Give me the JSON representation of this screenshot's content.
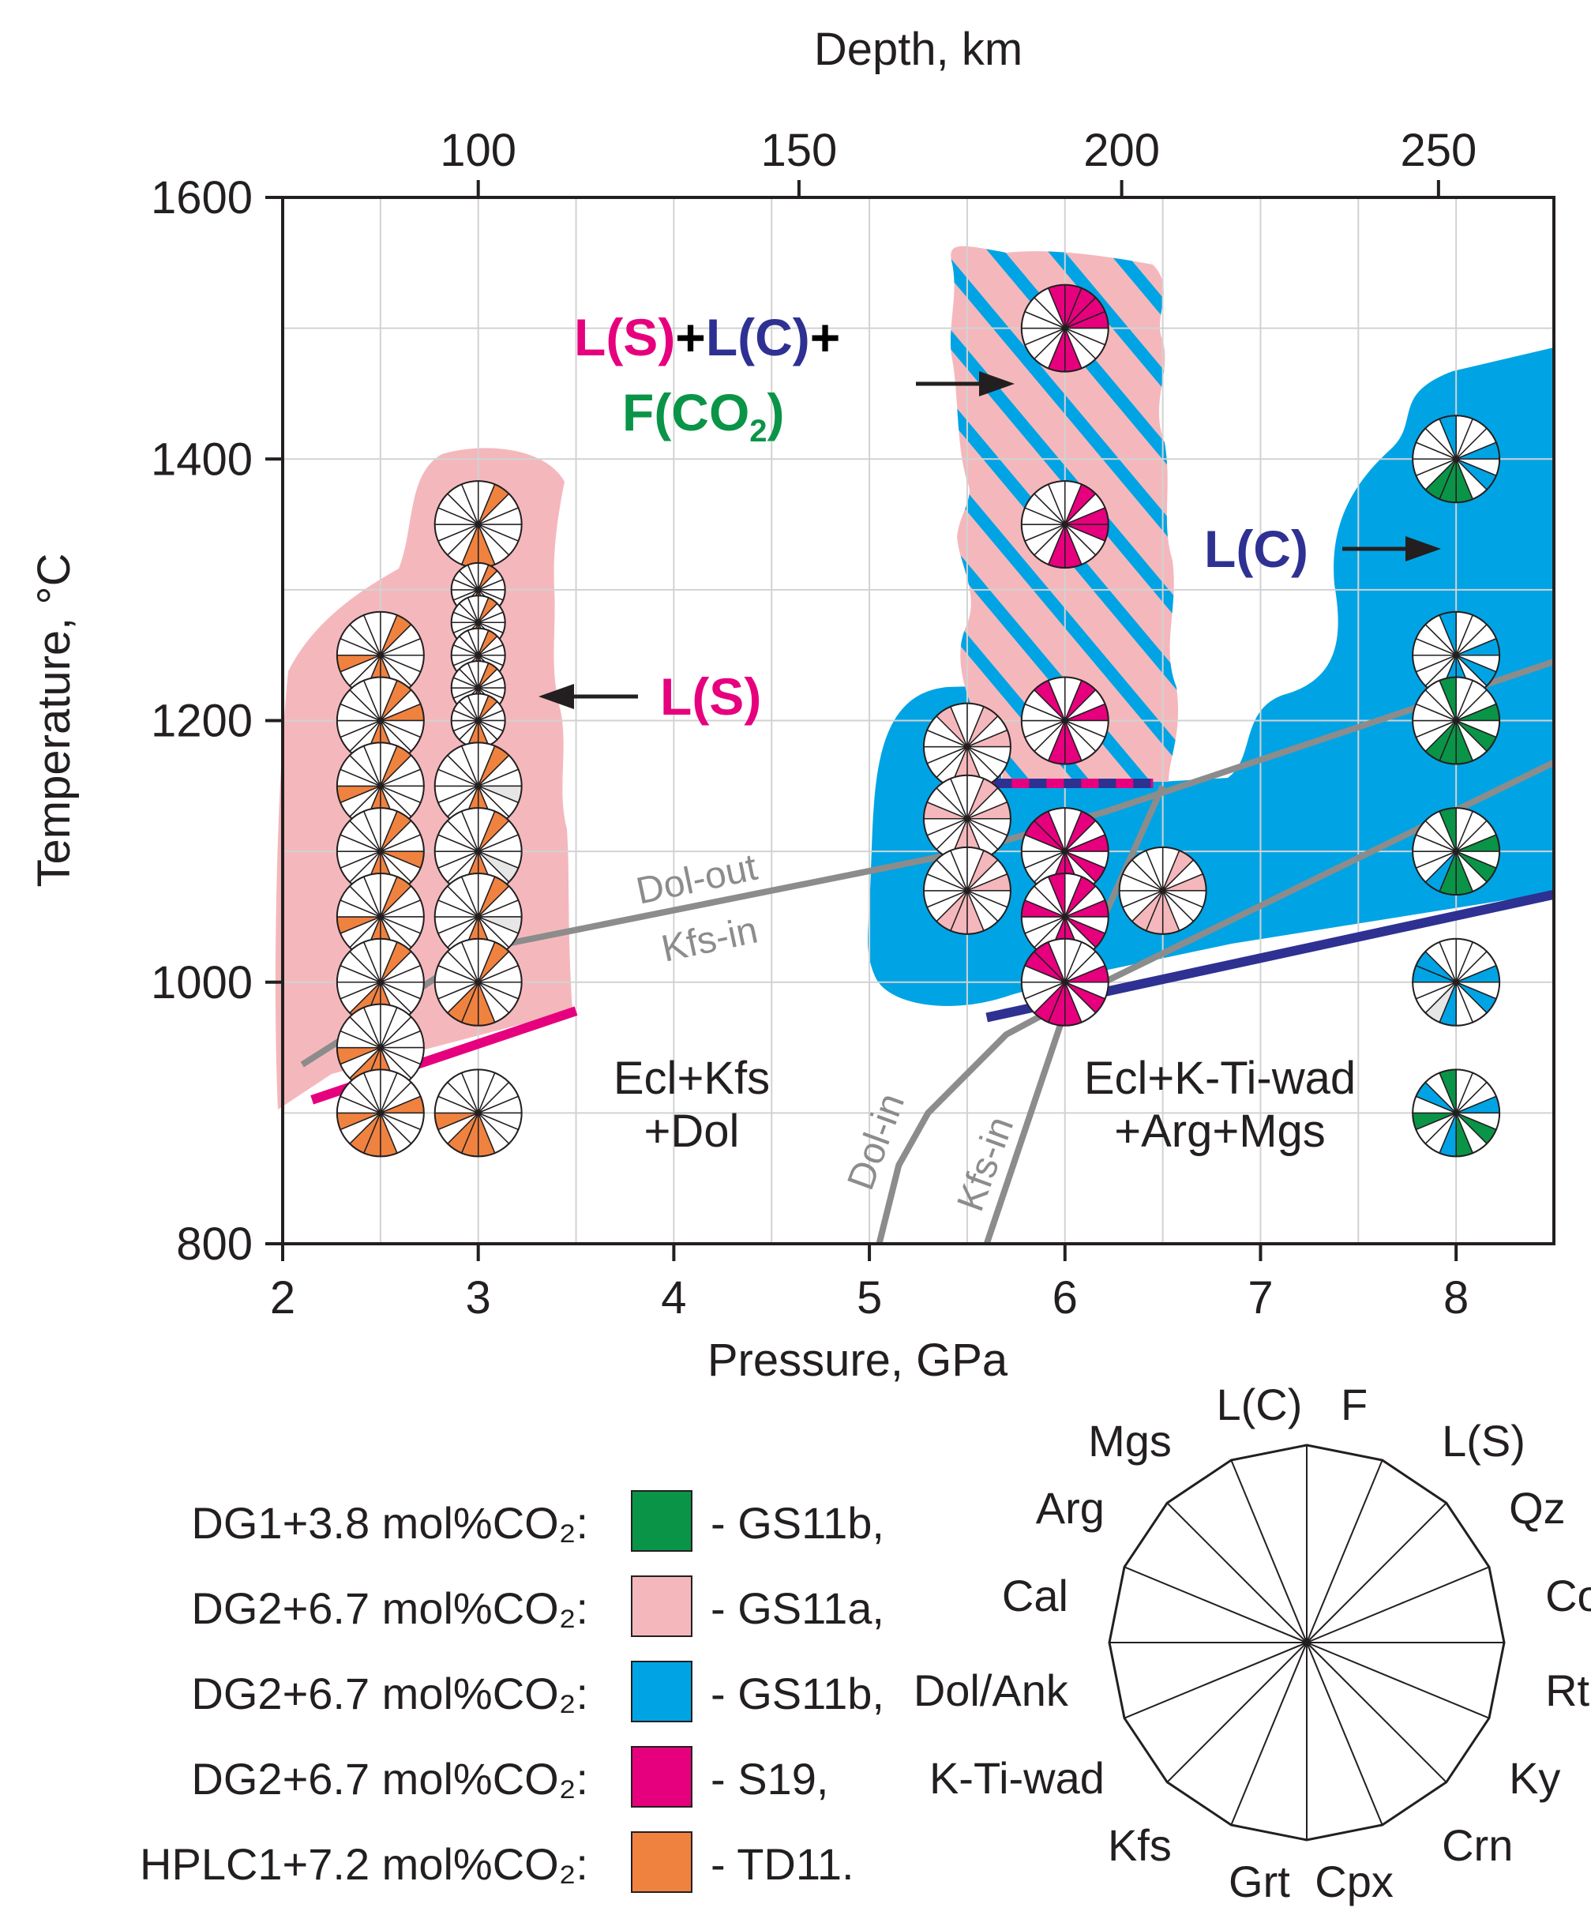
{
  "chart_data": {
    "type": "scatter",
    "title": "",
    "xlabel": "Pressure, GPa",
    "ylabel": "Temperature, °C",
    "top_axis_label": "Depth, km",
    "xlim": [
      2,
      8.5
    ],
    "ylim": [
      800,
      1600
    ],
    "x_ticks": [
      2,
      3,
      4,
      5,
      6,
      7,
      8
    ],
    "y_ticks": [
      800,
      1000,
      1200,
      1400,
      1600
    ],
    "top_ticks": [
      {
        "depth": 100,
        "pressure": 3.0
      },
      {
        "depth": 150,
        "pressure": 4.64
      },
      {
        "depth": 200,
        "pressure": 6.29
      },
      {
        "depth": 250,
        "pressure": 7.91
      }
    ],
    "grid": true,
    "phase_order": [
      "F",
      "L(S)",
      "Qz",
      "Coe",
      "Rt",
      "Ky",
      "Crn",
      "Cpx",
      "Grt",
      "Kfs",
      "K-Ti-wad",
      "Dol/Ank",
      "Cal",
      "Arg",
      "Mgs",
      "L(C)"
    ],
    "series": [
      {
        "name": "DG1+3.8 mol%CO₂: - GS11b,",
        "color": "#0a9447",
        "points": [
          [
            8,
            1400
          ],
          [
            8,
            1200
          ],
          [
            8,
            1100
          ],
          [
            8,
            900
          ]
        ]
      },
      {
        "name": "DG2+6.7 mol%CO₂: - GS11a,",
        "color": "#f4b8bc",
        "points": [
          [
            5.5,
            1180
          ],
          [
            5.5,
            1125
          ],
          [
            5.5,
            1070
          ],
          [
            6.5,
            1070
          ]
        ]
      },
      {
        "name": "DG2+6.7 mol%CO₂: - GS11b,",
        "color": "#00a4e4",
        "points": [
          [
            8,
            1250
          ],
          [
            8,
            1200
          ],
          [
            8,
            1100
          ],
          [
            8,
            1000
          ],
          [
            8,
            900
          ]
        ]
      },
      {
        "name": "DG2+6.7 mol%CO₂: - S19,",
        "color": "#e6007e",
        "points": [
          [
            6,
            1500
          ],
          [
            6,
            1350
          ],
          [
            6,
            1200
          ],
          [
            6,
            1100
          ],
          [
            6,
            1050
          ],
          [
            6,
            1000
          ]
        ]
      },
      {
        "name": "HPLC1+7.2 mol%CO₂: - TD11.",
        "color": "#f08240",
        "points": [
          [
            2.5,
            1250
          ],
          [
            2.5,
            1200
          ],
          [
            2.5,
            1150
          ],
          [
            2.5,
            1100
          ],
          [
            2.5,
            1050
          ],
          [
            2.5,
            1000
          ],
          [
            2.5,
            950
          ],
          [
            2.5,
            900
          ],
          [
            3,
            1350
          ],
          [
            3,
            1300
          ],
          [
            3,
            1275
          ],
          [
            3,
            1250
          ],
          [
            3,
            1225
          ],
          [
            3,
            1200
          ],
          [
            3,
            1150
          ],
          [
            3,
            1100
          ],
          [
            3,
            1050
          ],
          [
            3,
            1000
          ],
          [
            3,
            900
          ]
        ]
      }
    ],
    "markers": [
      {
        "P": 2.5,
        "T": 1250,
        "r": 55,
        "fill": {
          "L(S)": "#f08240",
          "Grt": "#f08240",
          "Cpx": "#f08240",
          "Dol/Ank": "#f08240"
        }
      },
      {
        "P": 2.5,
        "T": 1200,
        "r": 55,
        "fill": {
          "L(S)": "#f08240",
          "Grt": "#f08240",
          "Cpx": "#f08240",
          "Coe": "#f08240"
        }
      },
      {
        "P": 2.5,
        "T": 1150,
        "r": 55,
        "fill": {
          "L(S)": "#f08240",
          "Grt": "#f08240",
          "Cpx": "#f08240",
          "Dol/Ank": "#f08240"
        }
      },
      {
        "P": 2.5,
        "T": 1100,
        "r": 55,
        "fill": {
          "L(S)": "#f08240",
          "Grt": "#f08240",
          "Cpx": "#f08240",
          "Rt": "#f08240"
        }
      },
      {
        "P": 2.5,
        "T": 1050,
        "r": 55,
        "fill": {
          "L(S)": "#f08240",
          "Grt": "#f08240",
          "Cpx": "#f08240",
          "Dol/Ank": "#f08240"
        }
      },
      {
        "P": 2.5,
        "T": 1000,
        "r": 55,
        "fill": {
          "L(S)": "#f08240",
          "Grt": "#f08240",
          "Cpx": "#f08240",
          "Kfs": "#f08240"
        }
      },
      {
        "P": 2.5,
        "T": 950,
        "r": 55,
        "fill": {
          "Grt": "#f08240",
          "Cpx": "#f08240",
          "Kfs": "#f08240",
          "Dol/Ank": "#f08240"
        }
      },
      {
        "P": 2.5,
        "T": 900,
        "r": 55,
        "fill": {
          "Grt": "#f08240",
          "Cpx": "#f08240",
          "Kfs": "#f08240",
          "Dol/Ank": "#f08240",
          "Coe": "#f08240"
        }
      },
      {
        "P": 3,
        "T": 1350,
        "r": 55,
        "fill": {
          "L(S)": "#f08240",
          "Grt": "#f08240",
          "Cpx": "#f08240"
        }
      },
      {
        "P": 3,
        "T": 1300,
        "r": 34,
        "fill": {
          "L(S)": "#f08240",
          "Grt": "#f08240",
          "Cpx": "#f08240"
        }
      },
      {
        "P": 3,
        "T": 1275,
        "r": 34,
        "fill": {
          "L(S)": "#f08240",
          "Grt": "#f08240",
          "Cpx": "#f08240"
        }
      },
      {
        "P": 3,
        "T": 1250,
        "r": 34,
        "fill": {
          "L(S)": "#f08240",
          "Grt": "#f08240",
          "Cpx": "#f08240"
        }
      },
      {
        "P": 3,
        "T": 1225,
        "r": 34,
        "fill": {
          "L(S)": "#f08240",
          "Grt": "#f08240",
          "Cpx": "#f08240"
        }
      },
      {
        "P": 3,
        "T": 1200,
        "r": 34,
        "fill": {
          "L(S)": "#f08240",
          "Grt": "#f08240",
          "Cpx": "#f08240"
        }
      },
      {
        "P": 3,
        "T": 1150,
        "r": 55,
        "fill": {
          "L(S)": "#f08240",
          "Grt": "#f08240",
          "Cpx": "#f08240",
          "Rt": "#e6e6e6"
        }
      },
      {
        "P": 3,
        "T": 1100,
        "r": 55,
        "fill": {
          "L(S)": "#f08240",
          "Grt": "#f08240",
          "Cpx": "#f08240",
          "Ky": "#e6e6e6"
        }
      },
      {
        "P": 3,
        "T": 1050,
        "r": 55,
        "fill": {
          "L(S)": "#f08240",
          "Grt": "#f08240",
          "Cpx": "#f08240",
          "Rt": "#e6e6e6"
        }
      },
      {
        "P": 3,
        "T": 1000,
        "r": 55,
        "fill": {
          "L(S)": "#f08240",
          "Grt": "#f08240",
          "Cpx": "#f08240",
          "Kfs": "#f08240"
        }
      },
      {
        "P": 3,
        "T": 900,
        "r": 55,
        "fill": {
          "Grt": "#f08240",
          "Cpx": "#f08240",
          "Kfs": "#f08240",
          "Dol/Ank": "#f08240"
        }
      },
      {
        "P": 6,
        "T": 1500,
        "r": 55,
        "fill": {
          "F": "#e6007e",
          "L(S)": "#e6007e",
          "Qz": "#e6007e",
          "Coe": "#e6007e",
          "Cpx": "#e6007e",
          "Grt": "#e6007e",
          "L(C)": "#e6007e"
        }
      },
      {
        "P": 6,
        "T": 1350,
        "r": 55,
        "fill": {
          "L(S)": "#e6007e",
          "Coe": "#e6007e",
          "Cpx": "#e6007e",
          "Grt": "#e6007e",
          "Rt": "#e6007e"
        }
      },
      {
        "P": 6,
        "T": 1200,
        "r": 55,
        "fill": {
          "L(S)": "#e6007e",
          "Coe": "#e6007e",
          "Cpx": "#e6007e",
          "Grt": "#e6007e",
          "Mgs": "#e6007e"
        }
      },
      {
        "P": 6,
        "T": 1100,
        "r": 55,
        "fill": {
          "L(S)": "#e6007e",
          "Coe": "#e6007e",
          "Ky": "#e6007e",
          "Cpx": "#e6007e",
          "Grt": "#e6007e",
          "Arg": "#e6007e",
          "Mgs": "#e6007e"
        }
      },
      {
        "P": 6,
        "T": 1050,
        "r": 55,
        "fill": {
          "L(S)": "#e6007e",
          "Coe": "#e6007e",
          "Ky": "#e6007e",
          "Cpx": "#e6007e",
          "Grt": "#e6007e",
          "Cal": "#e6007e",
          "L(C)": "#e6007e"
        }
      },
      {
        "P": 6,
        "T": 1000,
        "r": 55,
        "fill": {
          "Coe": "#e6007e",
          "Ky": "#e6007e",
          "Cpx": "#e6007e",
          "Grt": "#e6007e",
          "Kfs": "#e6007e",
          "Arg": "#e6007e",
          "Mgs": "#e6007e"
        }
      },
      {
        "P": 5.5,
        "T": 1180,
        "r": 55,
        "fill": {
          "L(S)": "#f4b8bc",
          "Coe": "#f4b8bc",
          "Cpx": "#f4b8bc",
          "Grt": "#f4b8bc",
          "Mgs": "#f4b8bc"
        }
      },
      {
        "P": 5.5,
        "T": 1125,
        "r": 55,
        "fill": {
          "L(S)": "#f4b8bc",
          "Coe": "#f4b8bc",
          "Cpx": "#f4b8bc",
          "Grt": "#f4b8bc",
          "Cal": "#f4b8bc"
        }
      },
      {
        "P": 5.5,
        "T": 1070,
        "r": 55,
        "fill": {
          "L(S)": "#f4b8bc",
          "Coe": "#f4b8bc",
          "Cpx": "#f4b8bc",
          "Grt": "#f4b8bc",
          "Kfs": "#f4b8bc"
        }
      },
      {
        "P": 6.5,
        "T": 1070,
        "r": 55,
        "fill": {
          "L(S)": "#f4b8bc",
          "Coe": "#f4b8bc",
          "Cpx": "#f4b8bc",
          "Grt": "#f4b8bc",
          "Kfs": "#f4b8bc"
        }
      },
      {
        "P": 8,
        "T": 1400,
        "r": 55,
        "fill": {
          "Coe": "#00a4e4",
          "Ky": "#00a4e4",
          "Cpx": "#0a9447",
          "Grt": "#0a9447",
          "Kfs": "#0a9447",
          "L(C)": "#00a4e4"
        }
      },
      {
        "P": 8,
        "T": 1250,
        "r": 55,
        "fill": {
          "Coe": "#00a4e4",
          "Ky": "#00a4e4",
          "Cpx": "#00a4e4",
          "Grt": "#00a4e4",
          "L(C)": "#00a4e4"
        }
      },
      {
        "P": 8,
        "T": 1200,
        "r": 55,
        "fill": {
          "Coe": "#0a9447",
          "Ky": "#0a9447",
          "Cpx": "#0a9447",
          "Grt": "#0a9447",
          "Kfs": "#0a9447",
          "L(C)": "#0a9447"
        }
      },
      {
        "P": 8,
        "T": 1100,
        "r": 55,
        "fill": {
          "Coe": "#0a9447",
          "Ky": "#0a9447",
          "Cpx": "#0a9447",
          "Grt": "#0a9447",
          "Kfs": "#00a4e4",
          "L(C)": "#0a9447"
        }
      },
      {
        "P": 8,
        "T": 1000,
        "r": 55,
        "fill": {
          "Coe": "#00a4e4",
          "Ky": "#00a4e4",
          "Grt": "#00a4e4",
          "Kfs": "#e6e6e6",
          "Cal": "#00a4e4",
          "Arg": "#00a4e4"
        }
      },
      {
        "P": 8,
        "T": 900,
        "r": 55,
        "fill": {
          "Coe": "#00a4e4",
          "Ky": "#0a9447",
          "Cpx": "#0a9447",
          "Grt": "#00a4e4",
          "Dol/Ank": "#0a9447",
          "Arg": "#00a4e4",
          "L(C)": "#0a9447"
        }
      }
    ],
    "region_labels": [
      {
        "parts": [
          {
            "text": "L(S)",
            "color": "#e6007e"
          },
          {
            "text": "+",
            "color": "#000000"
          },
          {
            "text": "L(C)",
            "color": "#2e3192"
          },
          {
            "text": "+",
            "color": "#000000"
          }
        ]
      },
      {
        "parts": [
          {
            "text": "F(CO",
            "color": "#0a9447"
          },
          {
            "text": "2",
            "color": "#0a9447",
            "sub": true
          },
          {
            "text": ")",
            "color": "#0a9447"
          }
        ]
      },
      {
        "parts": [
          {
            "text": "L(C)",
            "color": "#2e3192"
          }
        ]
      },
      {
        "parts": [
          {
            "text": "L(S)",
            "color": "#e6007e"
          }
        ]
      }
    ],
    "field_labels": {
      "left": [
        "Ecl+Kfs",
        "+Dol"
      ],
      "right": [
        "Ecl+K-Ti-wad",
        "+Arg+Mgs"
      ]
    },
    "curve_labels": {
      "dol_out": "Dol-out",
      "kfs_in_left": "Kfs-in",
      "dol_in": "Dol-in",
      "kfs_in_right": "Kfs-in"
    },
    "lines": {
      "dol_out": [
        [
          2.1,
          937
        ],
        [
          2.5,
          975
        ],
        [
          3.0,
          1025
        ],
        [
          5.5,
          1100
        ],
        [
          6.2,
          1130
        ],
        [
          7.0,
          1170
        ],
        [
          8.5,
          1245
        ]
      ],
      "dol_in": [
        [
          5.05,
          800
        ],
        [
          5.15,
          860
        ],
        [
          5.3,
          900
        ],
        [
          5.7,
          960
        ],
        [
          6.2,
          1000
        ],
        [
          8.5,
          1168
        ]
      ],
      "kfs_in": [
        [
          5.6,
          800
        ],
        [
          6.05,
          1000
        ],
        [
          6.5,
          1150
        ]
      ],
      "ls_solidus": [
        [
          2.15,
          910
        ],
        [
          3.5,
          978
        ]
      ],
      "lc_solidus": [
        [
          5.6,
          973
        ],
        [
          8.5,
          1067
        ]
      ],
      "dashed_boundary": [
        [
          5.55,
          1152
        ],
        [
          6.45,
          1152
        ]
      ]
    },
    "legend": [
      {
        "label": "DG1+3.8 mol%CO₂:",
        "sample": "- GS11b,",
        "color": "#0a9447"
      },
      {
        "label": "DG2+6.7 mol%CO₂:",
        "sample": "- GS11a,",
        "color": "#f4b8bc"
      },
      {
        "label": "DG2+6.7 mol%CO₂:",
        "sample": "- GS11b,",
        "color": "#00a4e4"
      },
      {
        "label": "DG2+6.7 mol%CO₂:",
        "sample": "- S19,",
        "color": "#e6007e"
      },
      {
        "label": "HPLC1+7.2 mol%CO₂:",
        "sample": "- TD11.",
        "color": "#f08240"
      }
    ]
  }
}
